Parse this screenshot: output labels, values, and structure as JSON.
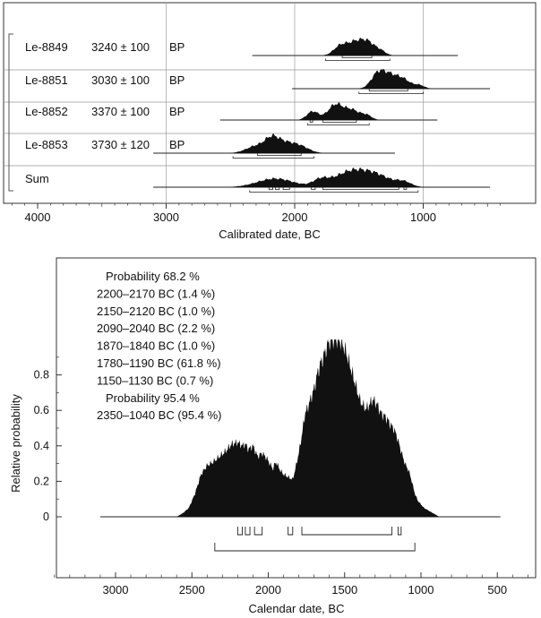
{
  "colors": {
    "fill": "#111111",
    "grid": "#aaaaaa",
    "axis": "#333333",
    "background": "#ffffff"
  },
  "chart_data": [
    {
      "type": "area",
      "subtype": "radiocarbon-calibration-multiplot",
      "xlabel": "Calibrated date, BC",
      "x_reversed": true,
      "xlim": [
        4300,
        300
      ],
      "x_ticks": [
        4000,
        3000,
        2000,
        1000
      ],
      "x_tick_labels": [
        "4000",
        "3000",
        "2000",
        "1000"
      ],
      "grid": "vertical lines at 3000, 2000, 1000",
      "rows": [
        {
          "sample": "Le-8849",
          "age": "3240 ± 100",
          "unit": "BP",
          "range": [
            2330,
            730
          ],
          "peaks": [
            [
              1520,
              1.0,
              75
            ],
            [
              1650,
              0.55,
              50
            ],
            [
              1420,
              0.6,
              50
            ],
            [
              1330,
              0.3,
              40
            ]
          ],
          "sigma1": [
            [
              1630,
              1400
            ]
          ],
          "sigma2": [
            [
              1760,
              1260
            ]
          ]
        },
        {
          "sample": "Le-8851",
          "age": "3030 ± 100",
          "unit": "BP",
          "range": [
            2020,
            480
          ],
          "peaks": [
            [
              1270,
              1.0,
              70
            ],
            [
              1360,
              0.8,
              50
            ],
            [
              1150,
              0.55,
              55
            ],
            [
              1030,
              0.25,
              40
            ]
          ],
          "sigma1": [
            [
              1420,
              1120
            ]
          ],
          "sigma2": [
            [
              1500,
              1000
            ]
          ]
        },
        {
          "sample": "Le-8852",
          "age": "3370 ± 100",
          "unit": "BP",
          "range": [
            2580,
            890
          ],
          "peaks": [
            [
              1680,
              1.0,
              60
            ],
            [
              1860,
              0.55,
              45
            ],
            [
              1550,
              0.6,
              55
            ],
            [
              1440,
              0.3,
              40
            ]
          ],
          "sigma1": [
            [
              1880,
              1860
            ],
            [
              1780,
              1520
            ]
          ],
          "sigma2": [
            [
              1900,
              1420
            ]
          ]
        },
        {
          "sample": "Le-8853",
          "age": "3730 ± 120",
          "unit": "BP",
          "range": [
            3100,
            1220
          ],
          "peaks": [
            [
              2100,
              1.0,
              95
            ],
            [
              2300,
              0.6,
              80
            ],
            [
              2180,
              0.7,
              50
            ],
            [
              1950,
              0.45,
              70
            ]
          ],
          "sigma1": [
            [
              2290,
              1950
            ]
          ],
          "sigma2": [
            [
              2480,
              1850
            ]
          ]
        },
        {
          "sample": "Sum",
          "age": "",
          "unit": "",
          "range": [
            3100,
            480
          ],
          "peaks": [
            [
              1560,
              1.0,
              130
            ],
            [
              1350,
              0.6,
              110
            ],
            [
              2150,
              0.55,
              140
            ],
            [
              1800,
              0.4,
              60
            ],
            [
              1150,
              0.3,
              60
            ]
          ],
          "sigma1": [
            [
              2200,
              2170
            ],
            [
              2150,
              2120
            ],
            [
              2090,
              2040
            ],
            [
              1870,
              1840
            ],
            [
              1780,
              1190
            ],
            [
              1150,
              1130
            ]
          ],
          "sigma2": [
            [
              2350,
              1040
            ]
          ]
        }
      ]
    },
    {
      "type": "area",
      "subtype": "summed-probability",
      "xlabel": "Calendar date, BC",
      "ylabel": "Relative probability",
      "x_reversed": true,
      "xlim": [
        3450,
        250
      ],
      "x_ticks": [
        3000,
        2500,
        2000,
        1500,
        1000,
        500
      ],
      "x_tick_labels": [
        "3000",
        "2500",
        "2000",
        "1500",
        "1000",
        "500"
      ],
      "ylim": [
        -0.4,
        1.0
      ],
      "y_ticks": [
        0,
        0.2,
        0.4,
        0.6,
        0.8
      ],
      "y_tick_labels": [
        "0",
        "0.2",
        "0.4",
        "0.6",
        "0.8"
      ],
      "baseline_range": [
        3100,
        480
      ],
      "curve": {
        "x": [
          2600,
          2560,
          2520,
          2480,
          2440,
          2400,
          2360,
          2320,
          2280,
          2240,
          2200,
          2170,
          2150,
          2130,
          2100,
          2070,
          2040,
          2010,
          1990,
          1970,
          1950,
          1920,
          1900,
          1880,
          1860,
          1840,
          1820,
          1800,
          1780,
          1760,
          1740,
          1720,
          1700,
          1680,
          1660,
          1640,
          1620,
          1600,
          1580,
          1560,
          1540,
          1520,
          1500,
          1480,
          1460,
          1440,
          1420,
          1400,
          1380,
          1360,
          1340,
          1320,
          1300,
          1280,
          1260,
          1240,
          1220,
          1200,
          1180,
          1160,
          1140,
          1120,
          1100,
          1080,
          1060,
          1040,
          1020,
          1000,
          980,
          960,
          940,
          920,
          900,
          880
        ],
        "y": [
          0.0,
          0.02,
          0.05,
          0.13,
          0.24,
          0.29,
          0.31,
          0.34,
          0.37,
          0.41,
          0.42,
          0.4,
          0.41,
          0.38,
          0.4,
          0.34,
          0.36,
          0.33,
          0.3,
          0.27,
          0.31,
          0.26,
          0.24,
          0.23,
          0.22,
          0.21,
          0.28,
          0.36,
          0.46,
          0.58,
          0.62,
          0.67,
          0.72,
          0.8,
          0.86,
          0.9,
          0.95,
          0.99,
          1.0,
          1.0,
          1.0,
          0.98,
          0.95,
          0.9,
          0.84,
          0.78,
          0.72,
          0.66,
          0.63,
          0.61,
          0.63,
          0.66,
          0.65,
          0.62,
          0.58,
          0.57,
          0.55,
          0.52,
          0.5,
          0.46,
          0.4,
          0.34,
          0.29,
          0.26,
          0.2,
          0.13,
          0.09,
          0.07,
          0.05,
          0.04,
          0.03,
          0.02,
          0.01,
          0.0
        ]
      },
      "sigma1": [
        [
          2200,
          2170
        ],
        [
          2150,
          2120
        ],
        [
          2090,
          2040
        ],
        [
          1870,
          1840
        ],
        [
          1780,
          1190
        ],
        [
          1150,
          1130
        ]
      ],
      "sigma2": [
        [
          2350,
          1040
        ]
      ],
      "annotations": [
        {
          "text": "Probability 68.2 %",
          "heading": true
        },
        {
          "text": "2200–2170 BC (1.4 %)"
        },
        {
          "text": "2150–2120 BC (1.0 %)"
        },
        {
          "text": "2090–2040 BC (2.2 %)"
        },
        {
          "text": "1870–1840 BC (1.0 %)"
        },
        {
          "text": "1780–1190 BC (61.8 %)"
        },
        {
          "text": "1150–1130 BC (0.7 %)"
        },
        {
          "text": "Probability 95.4 %",
          "heading": true
        },
        {
          "text": "2350–1040 BC (95.4 %)"
        }
      ]
    }
  ]
}
